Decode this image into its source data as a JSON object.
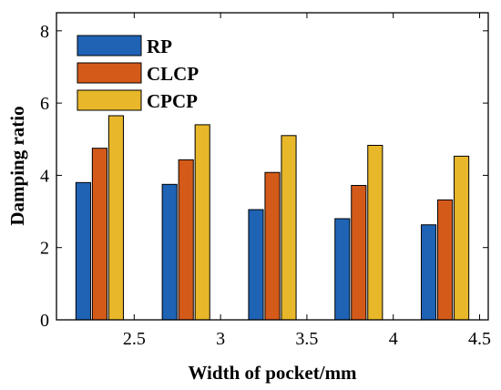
{
  "chart_data": {
    "type": "bar",
    "xlabel": "Width of pocket/mm",
    "ylabel": "Damping ratio",
    "xlim": [
      2.05,
      4.55
    ],
    "ylim": [
      0,
      8.5
    ],
    "x_ticks": [
      "2.5",
      "3",
      "3.5",
      "4",
      "4.5"
    ],
    "y_ticks": [
      "0",
      "2",
      "4",
      "6",
      "8"
    ],
    "grid": false,
    "legend_position": "top-left",
    "group_centers": [
      2.3,
      2.8,
      3.3,
      3.8,
      4.3
    ],
    "series": [
      {
        "name": "RP",
        "color": "#1f63b5",
        "values": [
          3.8,
          3.75,
          3.05,
          2.8,
          2.63
        ]
      },
      {
        "name": "CLCP",
        "color": "#d45a1a",
        "values": [
          4.75,
          4.43,
          4.08,
          3.72,
          3.32
        ]
      },
      {
        "name": "CPCP",
        "color": "#e8b72a",
        "values": [
          5.65,
          5.4,
          5.1,
          4.83,
          4.53
        ]
      }
    ]
  }
}
